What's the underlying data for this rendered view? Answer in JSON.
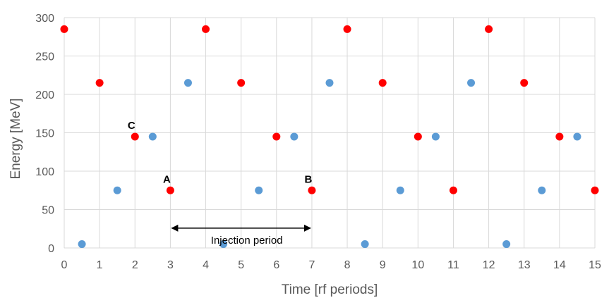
{
  "chart_data": {
    "type": "scatter",
    "xlabel": "Time [rf periods]",
    "ylabel": "Energy [MeV]",
    "xlim": [
      0,
      15
    ],
    "ylim": [
      0,
      300
    ],
    "xticks": [
      0,
      1,
      2,
      3,
      4,
      5,
      6,
      7,
      8,
      9,
      10,
      11,
      12,
      13,
      14,
      15
    ],
    "yticks": [
      0,
      50,
      100,
      150,
      200,
      250,
      300
    ],
    "grid": "vertical and horizontal major gridlines",
    "series": [
      {
        "name": "red",
        "color": "#ff0000",
        "x": [
          0,
          1,
          2,
          3,
          4,
          5,
          6,
          7,
          8,
          9,
          10,
          11,
          12,
          13,
          14,
          15
        ],
        "y": [
          285,
          215,
          145,
          75,
          285,
          215,
          145,
          75,
          285,
          215,
          145,
          75,
          285,
          215,
          145,
          75
        ]
      },
      {
        "name": "blue",
        "color": "#5b9bd5",
        "x": [
          0.5,
          1.5,
          2.5,
          3.5,
          4.5,
          5.5,
          6.5,
          7.5,
          8.5,
          9.5,
          10.5,
          11.5,
          12.5,
          13.5,
          14.5
        ],
        "y": [
          5,
          75,
          145,
          215,
          5,
          75,
          145,
          215,
          5,
          75,
          145,
          215,
          5,
          75,
          145
        ]
      }
    ],
    "annotations": [
      {
        "text": "A",
        "x": 3,
        "y": 75
      },
      {
        "text": "B",
        "x": 7,
        "y": 75
      },
      {
        "text": "C",
        "x": 2,
        "y": 145
      }
    ],
    "arrow": {
      "label": "Injection period",
      "x_start": 3,
      "x_end": 7,
      "y": 57
    }
  }
}
